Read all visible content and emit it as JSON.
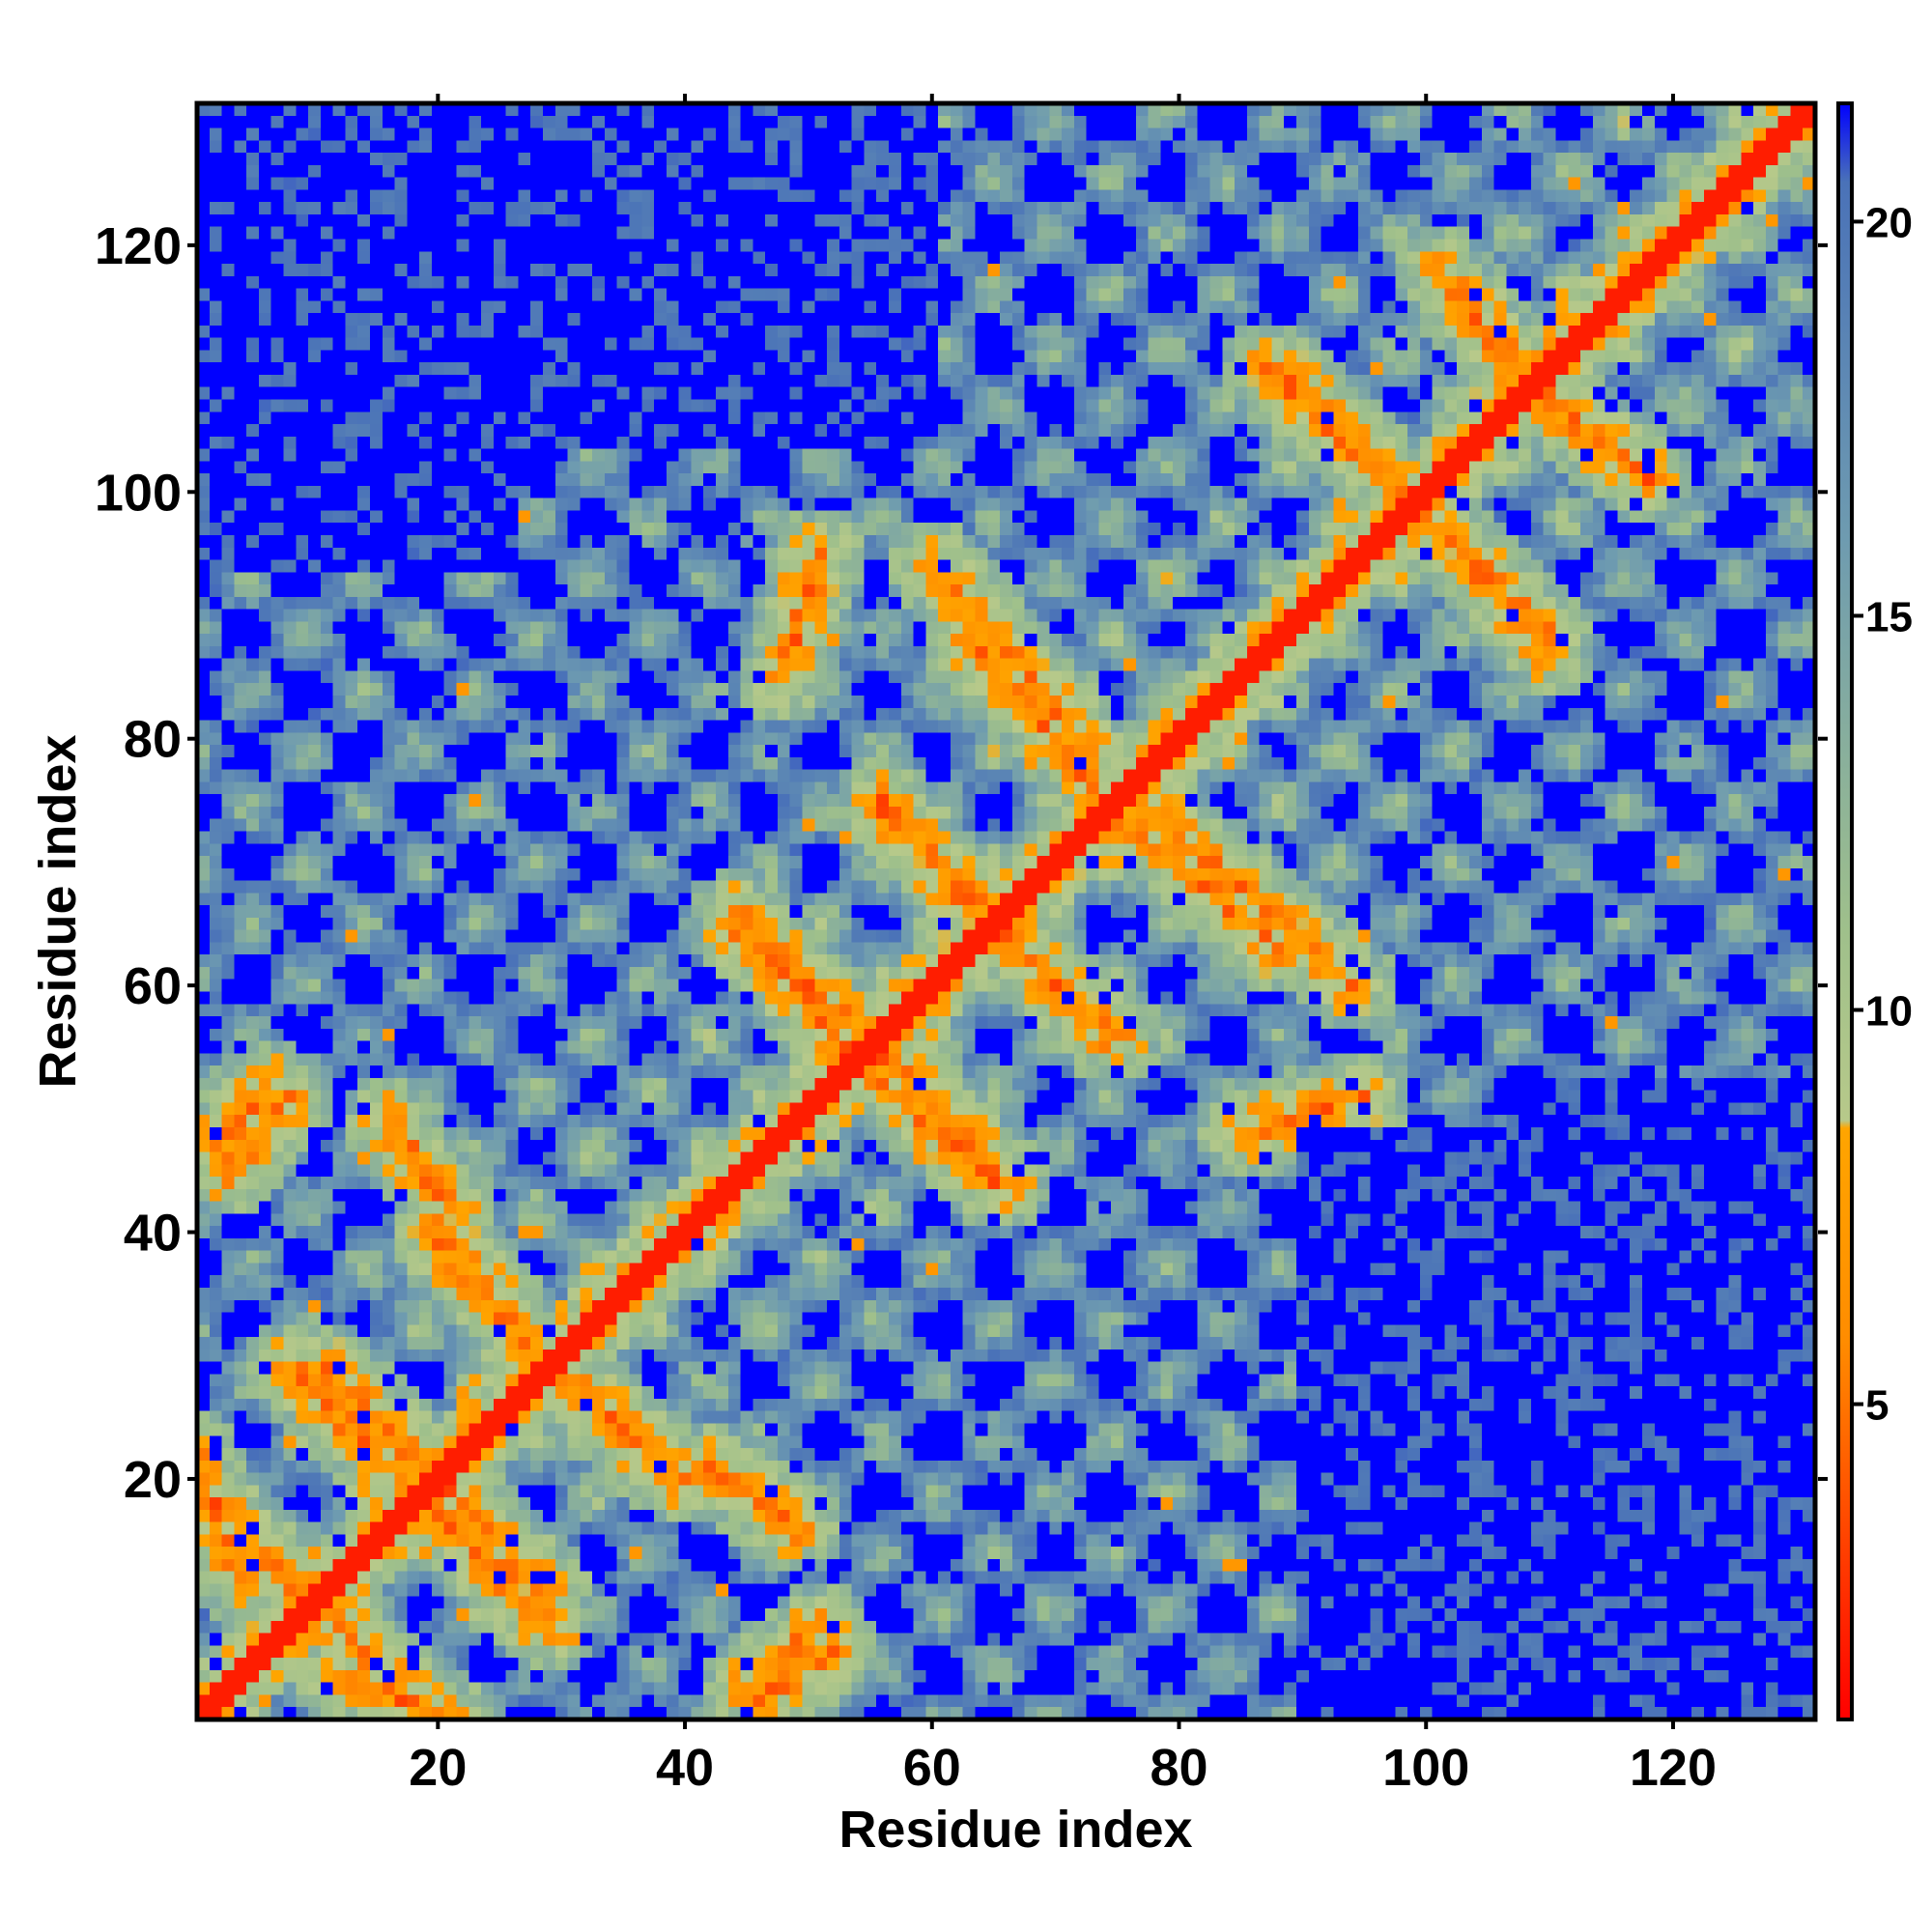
{
  "chart_data": {
    "type": "heatmap",
    "title": "",
    "xlabel": "Residue index",
    "ylabel": "Residue index",
    "xlim": [
      1,
      131
    ],
    "ylim": [
      1,
      131
    ],
    "n_residues": 131,
    "x_ticks": [
      20,
      40,
      60,
      80,
      100,
      120
    ],
    "y_ticks": [
      20,
      40,
      60,
      80,
      100,
      120
    ],
    "colorbar": {
      "range": [
        1,
        21.5
      ],
      "ticks": [
        5,
        10,
        15,
        20
      ],
      "stops": [
        {
          "value": 1,
          "color": "#ff0000"
        },
        {
          "value": 5.8,
          "color": "#ff8c00"
        },
        {
          "value": 8.5,
          "color": "#ffa500"
        },
        {
          "value": 8.6,
          "color": "#b7c98a"
        },
        {
          "value": 11,
          "color": "#9fc08b"
        },
        {
          "value": 16,
          "color": "#6e9bb0"
        },
        {
          "value": 20.5,
          "color": "#4a72b8"
        },
        {
          "value": 21.5,
          "color": "#0000ff"
        }
      ]
    },
    "value_cap": 21.5,
    "background_color": "#0000ff",
    "diagonal_band_color": "#ff0000",
    "helix_contacts": [
      {
        "start": [
          1,
          19
        ],
        "end": [
          13,
          7
        ]
      },
      {
        "start": [
          12,
          4
        ],
        "end": [
          22,
          0
        ]
      },
      {
        "start": [
          19,
          18
        ],
        "end": [
          29,
          8
        ]
      },
      {
        "start": [
          11,
          29
        ],
        "end": [
          22,
          18
        ]
      },
      {
        "start": [
          20,
          39
        ],
        "end": [
          32,
          26
        ]
      },
      {
        "start": [
          28,
          30
        ],
        "end": [
          40,
          20
        ]
      },
      {
        "start": [
          44,
          66
        ],
        "end": [
          55,
          55
        ]
      },
      {
        "start": [
          54,
          54
        ],
        "end": [
          65,
          44
        ]
      },
      {
        "start": [
          56,
          74
        ],
        "end": [
          66,
          64
        ]
      },
      {
        "start": [
          65,
          64
        ],
        "end": [
          75,
          56
        ]
      },
      {
        "start": [
          60,
          94
        ],
        "end": [
          73,
          79
        ]
      },
      {
        "start": [
          75,
          74
        ],
        "end": [
          88,
          63
        ]
      },
      {
        "start": [
          87,
          110
        ],
        "end": [
          97,
          101
        ]
      },
      {
        "start": [
          100,
          98
        ],
        "end": [
          110,
          88
        ]
      },
      {
        "start": [
          101,
          118
        ],
        "end": [
          110,
          107
        ]
      },
      {
        "start": [
          109,
          108
        ],
        "end": [
          118,
          101
        ]
      },
      {
        "start": [
          85,
          48
        ],
        "end": [
          95,
          51
        ]
      },
      {
        "start": [
          46,
          2
        ],
        "end": [
          52,
          6
        ]
      },
      {
        "start": [
          42,
          21
        ],
        "end": [
          49,
          16
        ]
      },
      {
        "start": [
          3,
          45
        ],
        "end": [
          8,
          51
        ]
      }
    ],
    "empty_regions": [
      {
        "x": [
          1,
          60
        ],
        "y": [
          104,
          131
        ]
      },
      {
        "x": [
          1,
          26
        ],
        "y": [
          94,
          131
        ]
      },
      {
        "x": [
          90,
          131
        ],
        "y": [
          1,
          48
        ]
      },
      {
        "x": [
          108,
          131
        ],
        "y": [
          1,
          52
        ]
      }
    ]
  }
}
